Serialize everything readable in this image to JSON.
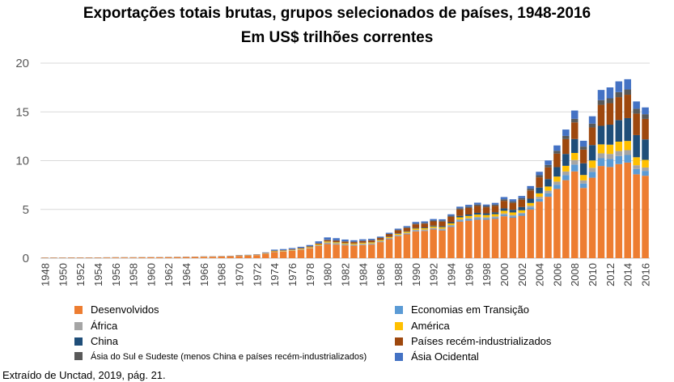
{
  "chart_data": {
    "type": "bar",
    "stacked": true,
    "title": "Exportações totais brutas, grupos selecionados de países, 1948-2016",
    "subtitle": "Em US$ trilhões correntes",
    "xlabel": "",
    "ylabel": "",
    "ylim": [
      0,
      20
    ],
    "yticks": [
      0,
      5,
      10,
      15,
      20
    ],
    "grid": true,
    "legend_position": "bottom",
    "categories": [
      "1948",
      "1949",
      "1950",
      "1951",
      "1952",
      "1953",
      "1954",
      "1955",
      "1956",
      "1957",
      "1958",
      "1959",
      "1960",
      "1961",
      "1962",
      "1963",
      "1964",
      "1965",
      "1966",
      "1967",
      "1968",
      "1969",
      "1970",
      "1971",
      "1972",
      "1973",
      "1974",
      "1975",
      "1976",
      "1977",
      "1978",
      "1979",
      "1980",
      "1981",
      "1982",
      "1983",
      "1984",
      "1985",
      "1986",
      "1987",
      "1988",
      "1989",
      "1990",
      "1991",
      "1992",
      "1993",
      "1994",
      "1995",
      "1996",
      "1997",
      "1998",
      "1999",
      "2000",
      "2001",
      "2002",
      "2003",
      "2004",
      "2005",
      "2006",
      "2007",
      "2008",
      "2009",
      "2010",
      "2011",
      "2012",
      "2013",
      "2014",
      "2015",
      "2016"
    ],
    "tick_labels": [
      "1948",
      "1950",
      "1952",
      "1954",
      "1956",
      "1958",
      "1960",
      "1962",
      "1964",
      "1966",
      "1968",
      "1970",
      "1972",
      "1974",
      "1976",
      "1978",
      "1980",
      "1982",
      "1984",
      "1986",
      "1988",
      "1990",
      "1992",
      "1994",
      "1996",
      "1998",
      "2000",
      "2002",
      "2004",
      "2006",
      "2008",
      "2010",
      "2012",
      "2014",
      "2016"
    ],
    "series": [
      {
        "name": "Desenvolvidos",
        "color": "#ED7D31",
        "values": [
          0.04,
          0.04,
          0.04,
          0.05,
          0.05,
          0.05,
          0.05,
          0.06,
          0.07,
          0.07,
          0.07,
          0.08,
          0.09,
          0.09,
          0.1,
          0.11,
          0.12,
          0.13,
          0.14,
          0.15,
          0.17,
          0.2,
          0.23,
          0.26,
          0.31,
          0.45,
          0.62,
          0.68,
          0.75,
          0.85,
          1.0,
          1.25,
          1.45,
          1.4,
          1.32,
          1.28,
          1.35,
          1.4,
          1.65,
          1.95,
          2.25,
          2.45,
          2.75,
          2.8,
          2.95,
          2.85,
          3.2,
          3.75,
          3.85,
          3.95,
          3.95,
          4.05,
          4.3,
          4.15,
          4.35,
          5.0,
          5.8,
          6.3,
          7.1,
          8.0,
          8.9,
          7.2,
          8.25,
          9.45,
          9.35,
          9.65,
          9.8,
          8.6,
          8.45
        ]
      },
      {
        "name": "Economias em Transição",
        "color": "#5B9BD5",
        "values": [
          0.005,
          0.005,
          0.005,
          0.005,
          0.005,
          0.005,
          0.005,
          0.005,
          0.005,
          0.005,
          0.005,
          0.005,
          0.005,
          0.005,
          0.005,
          0.005,
          0.005,
          0.005,
          0.005,
          0.005,
          0.005,
          0.005,
          0.005,
          0.005,
          0.005,
          0.01,
          0.01,
          0.01,
          0.01,
          0.01,
          0.01,
          0.02,
          0.04,
          0.04,
          0.04,
          0.04,
          0.04,
          0.04,
          0.04,
          0.04,
          0.05,
          0.05,
          0.05,
          0.04,
          0.06,
          0.08,
          0.1,
          0.13,
          0.14,
          0.15,
          0.13,
          0.12,
          0.15,
          0.15,
          0.17,
          0.21,
          0.28,
          0.35,
          0.43,
          0.52,
          0.7,
          0.45,
          0.6,
          0.8,
          0.82,
          0.82,
          0.78,
          0.55,
          0.5
        ]
      },
      {
        "name": "África",
        "color": "#A5A5A5",
        "values": [
          0.005,
          0.005,
          0.005,
          0.005,
          0.005,
          0.005,
          0.005,
          0.005,
          0.005,
          0.005,
          0.005,
          0.005,
          0.005,
          0.005,
          0.005,
          0.005,
          0.005,
          0.005,
          0.01,
          0.01,
          0.01,
          0.01,
          0.01,
          0.01,
          0.01,
          0.02,
          0.03,
          0.03,
          0.04,
          0.04,
          0.05,
          0.06,
          0.12,
          0.1,
          0.09,
          0.08,
          0.08,
          0.08,
          0.07,
          0.08,
          0.09,
          0.09,
          0.11,
          0.1,
          0.1,
          0.1,
          0.1,
          0.11,
          0.12,
          0.13,
          0.11,
          0.11,
          0.14,
          0.13,
          0.14,
          0.17,
          0.22,
          0.27,
          0.32,
          0.37,
          0.47,
          0.33,
          0.42,
          0.5,
          0.52,
          0.52,
          0.5,
          0.38,
          0.35
        ]
      },
      {
        "name": "América",
        "color": "#FFC000",
        "values": [
          0.005,
          0.005,
          0.005,
          0.005,
          0.005,
          0.005,
          0.005,
          0.005,
          0.005,
          0.005,
          0.005,
          0.005,
          0.005,
          0.005,
          0.005,
          0.005,
          0.005,
          0.005,
          0.01,
          0.01,
          0.01,
          0.01,
          0.02,
          0.02,
          0.02,
          0.03,
          0.05,
          0.05,
          0.05,
          0.06,
          0.06,
          0.08,
          0.1,
          0.1,
          0.09,
          0.09,
          0.1,
          0.1,
          0.09,
          0.1,
          0.11,
          0.12,
          0.13,
          0.13,
          0.14,
          0.15,
          0.17,
          0.2,
          0.22,
          0.24,
          0.23,
          0.23,
          0.27,
          0.26,
          0.25,
          0.28,
          0.35,
          0.43,
          0.52,
          0.58,
          0.72,
          0.55,
          0.75,
          0.92,
          0.95,
          0.96,
          0.94,
          0.82,
          0.78
        ]
      },
      {
        "name": "China",
        "color": "#1F4E79",
        "values": [
          0.003,
          0.003,
          0.003,
          0.003,
          0.003,
          0.003,
          0.003,
          0.003,
          0.003,
          0.003,
          0.003,
          0.003,
          0.003,
          0.003,
          0.003,
          0.003,
          0.003,
          0.003,
          0.003,
          0.003,
          0.003,
          0.003,
          0.003,
          0.003,
          0.003,
          0.005,
          0.007,
          0.007,
          0.007,
          0.008,
          0.01,
          0.014,
          0.018,
          0.022,
          0.022,
          0.022,
          0.026,
          0.027,
          0.031,
          0.039,
          0.048,
          0.053,
          0.062,
          0.072,
          0.085,
          0.092,
          0.12,
          0.15,
          0.15,
          0.18,
          0.18,
          0.19,
          0.25,
          0.27,
          0.33,
          0.44,
          0.59,
          0.76,
          0.97,
          1.22,
          1.43,
          1.2,
          1.58,
          1.9,
          2.05,
          2.21,
          2.34,
          2.27,
          2.1
        ]
      },
      {
        "name": "Países recém-industrializados",
        "color": "#9E480E",
        "values": [
          0.005,
          0.005,
          0.005,
          0.005,
          0.005,
          0.005,
          0.005,
          0.005,
          0.005,
          0.005,
          0.005,
          0.005,
          0.005,
          0.005,
          0.005,
          0.005,
          0.005,
          0.005,
          0.01,
          0.01,
          0.01,
          0.01,
          0.02,
          0.02,
          0.02,
          0.03,
          0.04,
          0.04,
          0.05,
          0.06,
          0.07,
          0.09,
          0.12,
          0.13,
          0.13,
          0.14,
          0.16,
          0.17,
          0.19,
          0.24,
          0.3,
          0.33,
          0.37,
          0.4,
          0.44,
          0.48,
          0.55,
          0.65,
          0.67,
          0.7,
          0.62,
          0.66,
          0.77,
          0.71,
          0.75,
          0.85,
          1.05,
          1.2,
          1.38,
          1.52,
          1.7,
          1.4,
          1.8,
          2.15,
          2.2,
          2.35,
          2.4,
          2.2,
          2.1
        ]
      },
      {
        "name": "Ásia do Sul e Sudeste (menos China e países recém-industrializados)",
        "color": "#595959",
        "values": [
          0.005,
          0.005,
          0.005,
          0.005,
          0.005,
          0.005,
          0.005,
          0.005,
          0.005,
          0.005,
          0.005,
          0.005,
          0.005,
          0.005,
          0.005,
          0.005,
          0.005,
          0.005,
          0.005,
          0.005,
          0.005,
          0.005,
          0.01,
          0.01,
          0.01,
          0.01,
          0.02,
          0.02,
          0.02,
          0.02,
          0.03,
          0.03,
          0.04,
          0.04,
          0.04,
          0.04,
          0.04,
          0.04,
          0.04,
          0.05,
          0.06,
          0.07,
          0.08,
          0.08,
          0.09,
          0.1,
          0.11,
          0.13,
          0.14,
          0.15,
          0.13,
          0.14,
          0.16,
          0.15,
          0.16,
          0.18,
          0.22,
          0.25,
          0.29,
          0.33,
          0.37,
          0.31,
          0.4,
          0.48,
          0.5,
          0.52,
          0.54,
          0.5,
          0.48
        ]
      },
      {
        "name": "Ásia Ocidental",
        "color": "#4472C4",
        "values": [
          0.005,
          0.005,
          0.005,
          0.005,
          0.005,
          0.005,
          0.005,
          0.005,
          0.005,
          0.005,
          0.005,
          0.005,
          0.005,
          0.005,
          0.005,
          0.005,
          0.005,
          0.005,
          0.01,
          0.01,
          0.01,
          0.01,
          0.02,
          0.02,
          0.02,
          0.04,
          0.1,
          0.1,
          0.11,
          0.12,
          0.12,
          0.18,
          0.24,
          0.22,
          0.18,
          0.15,
          0.14,
          0.13,
          0.1,
          0.11,
          0.12,
          0.13,
          0.16,
          0.15,
          0.15,
          0.14,
          0.15,
          0.16,
          0.18,
          0.19,
          0.15,
          0.17,
          0.23,
          0.22,
          0.23,
          0.27,
          0.35,
          0.46,
          0.55,
          0.65,
          0.85,
          0.6,
          0.75,
          1.05,
          1.12,
          1.1,
          1.05,
          0.75,
          0.7
        ]
      }
    ]
  },
  "source": "Extraído de Unctad, 2019, pág. 21."
}
